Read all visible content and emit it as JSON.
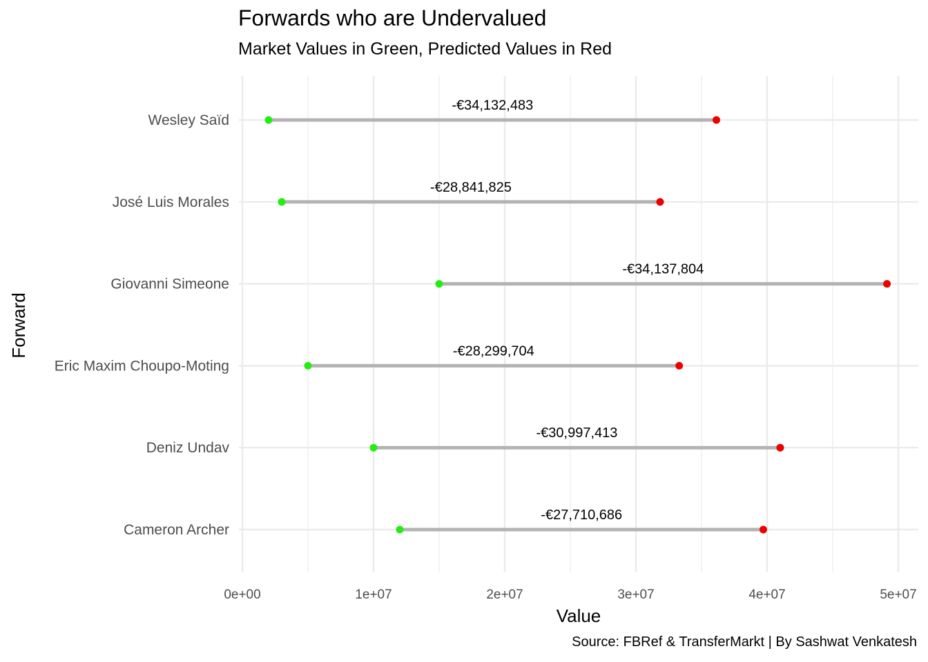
{
  "chart_data": {
    "type": "dumbbell",
    "title": "Forwards who are Undervalued",
    "subtitle": "Market Values in Green, Predicted Values in Red",
    "caption": "Source: FBRef & TransferMarkt | By Sashwat Venkatesh",
    "xlabel": "Value",
    "ylabel": "Forward",
    "xlim": [
      0,
      50000000
    ],
    "x_ticks": [
      {
        "value": 0,
        "label": "0e+00"
      },
      {
        "value": 10000000,
        "label": "1e+07"
      },
      {
        "value": 20000000,
        "label": "2e+07"
      },
      {
        "value": 30000000,
        "label": "3e+07"
      },
      {
        "value": 40000000,
        "label": "4e+07"
      },
      {
        "value": 50000000,
        "label": "5e+07"
      }
    ],
    "grid": true,
    "colors": {
      "market": "#22ee11",
      "predicted": "#ee0000",
      "segment": "#b3b3b3",
      "grid": "#ebebeb"
    },
    "series": [
      {
        "forward": "Wesley Saïd",
        "market_value": 2000000,
        "predicted_value": 36132483,
        "difference_label": "-€34,132,483"
      },
      {
        "forward": "José Luis Morales",
        "market_value": 3000000,
        "predicted_value": 31841825,
        "difference_label": "-€28,841,825"
      },
      {
        "forward": "Giovanni Simeone",
        "market_value": 15000000,
        "predicted_value": 49137804,
        "difference_label": "-€34,137,804"
      },
      {
        "forward": "Eric Maxim Choupo-Moting",
        "market_value": 5000000,
        "predicted_value": 33299704,
        "difference_label": "-€28,299,704"
      },
      {
        "forward": "Deniz Undav",
        "market_value": 10000000,
        "predicted_value": 40997413,
        "difference_label": "-€30,997,413"
      },
      {
        "forward": "Cameron Archer",
        "market_value": 12000000,
        "predicted_value": 39710686,
        "difference_label": "-€27,710,686"
      }
    ]
  }
}
